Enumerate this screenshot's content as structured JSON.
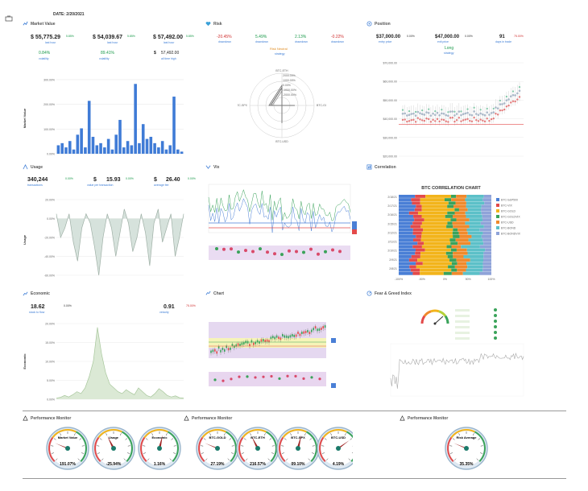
{
  "header": {
    "date": "DATE: 2/20/2021"
  },
  "market": {
    "title": "Market Value",
    "v1": "$ 55,775.29",
    "v1_pct": "5.85%",
    "v1_lbl": "last hour",
    "v2": "$ 54,039.67",
    "v2_pct": "5.85%",
    "v2_lbl": "last hour",
    "v3": "$ 57,492.00",
    "v3_pct": "5.85%",
    "v3_lbl": "last hour",
    "r1": "0.84%",
    "r1_lbl": "volatility",
    "r2": "89.41%",
    "r2_lbl": "volatility",
    "r3_sym": "$",
    "r3": "57,492.00",
    "r3_lbl": "all time high",
    "ylabel": "Market Value",
    "yticks": [
      "300.00%",
      "200.00%",
      "100.00%",
      "0.00%"
    ]
  },
  "risk": {
    "title": "Risk",
    "vals": [
      "-20.45%",
      "5.49%",
      "2.13%",
      "-0.22%"
    ],
    "lbls": [
      "drawdown",
      "drawdown",
      "drawdown",
      "drawdown"
    ],
    "center_label": "Risk Neutral",
    "center_sub": "strategy",
    "axes": [
      "BTC-ETH",
      "BTC-GOLD",
      "BTC-SPX",
      "BTC-USD"
    ],
    "rticks": [
      "2000.00%",
      "1000.00%",
      "0.00%",
      "-1000.00%",
      "-2000.00%"
    ]
  },
  "position": {
    "title": "Position",
    "v1": "$37,000.00",
    "v1_pct": "0.00%",
    "v1_lbl": "entry price",
    "v2": "$47,000.00",
    "v2_pct": "0.00%",
    "v2_lbl": "exit price",
    "v3": "91",
    "v3_pct": "75.00%",
    "v3_lbl": "days in trade",
    "side": "Long",
    "side_lbl": "strategy",
    "yticks": [
      "$70,000.00",
      "$60,000.00",
      "$50,000.00",
      "$40,000.00",
      "$30,000.00",
      "$20,000.00"
    ]
  },
  "usage": {
    "title": "Usage",
    "v1": "340,244",
    "v1_pct": "0.00%",
    "v1_lbl": "transactions",
    "v2_sym": "$",
    "v2": "15.93",
    "v2_pct": "0.00%",
    "v2_lbl": "value per transaction",
    "v3_sym": "$",
    "v3": "26.40",
    "v3_pct": "0.00%",
    "v3_lbl": "average fee",
    "ylabel": "Usage",
    "yticks": [
      "20.00%",
      "0.00%",
      "-20.00%",
      "-40.00%",
      "-60.00%"
    ]
  },
  "vix": {
    "title": "Vix"
  },
  "correlation": {
    "title": "Correlation",
    "chart_title": "BTC CORRELATION CHART",
    "dates": [
      "2/18/21",
      "2/17/21",
      "2/16/21",
      "2/15/21",
      "2/12/21",
      "2/11/21",
      "2/10/21",
      "2/9/21",
      "2/8/21"
    ],
    "xticks": [
      "-100%",
      "-50%",
      "0%",
      "50%",
      "100%"
    ],
    "legend": [
      "BTC-S&P500",
      "BTC-VIX",
      "BTC-GOLD",
      "BTC-GOLDVIX",
      "BTC-USD",
      "BTC-BOND",
      "BTC-BONDVIX"
    ],
    "colors": [
      "#4a7fd6",
      "#e34a4a",
      "#f2b41b",
      "#3aa35a",
      "#f08a2c",
      "#5cc0c8",
      "#8fa3d9"
    ]
  },
  "economic": {
    "title": "Economic",
    "v1": "18.62",
    "v1_pct": "0.00%",
    "v1_lbl": "stock to flow",
    "v2": "0.91",
    "v2_pct": "75.00%",
    "v2_lbl": "velocity",
    "ylabel": "Economic",
    "yticks": [
      "20.00%",
      "15.00%",
      "10.00%",
      "5.00%",
      "0.00%"
    ]
  },
  "chart": {
    "title": "Chart"
  },
  "fear": {
    "title": "Fear & Greed Index"
  },
  "perf": {
    "title1": "Performance Monitor",
    "title2": "Performance Monitor",
    "title3": "Performance Monitor",
    "gauges1": [
      {
        "label": "Market Value",
        "value": "191.07%"
      },
      {
        "label": "Usage",
        "value": "-25.94%"
      },
      {
        "label": "Economic",
        "value": "1.16%"
      }
    ],
    "gauges2": [
      {
        "label": "BTC-GOLD",
        "value": "27.19%"
      },
      {
        "label": "BTC-ETH",
        "value": "216.57%"
      },
      {
        "label": "BTC-SPX",
        "value": "09.10%"
      },
      {
        "label": "BTC-USD",
        "value": "4.19%"
      }
    ],
    "gauges3": [
      {
        "label": "Risk Average",
        "value": "35.35%"
      }
    ]
  }
}
